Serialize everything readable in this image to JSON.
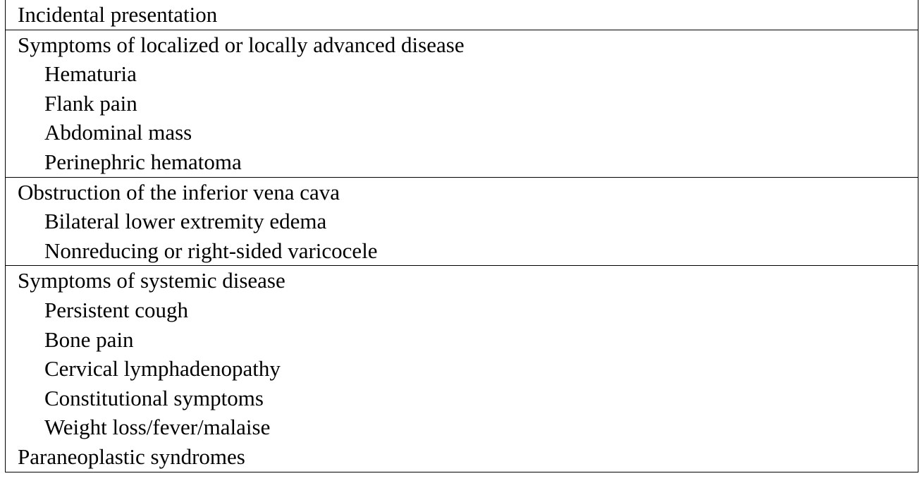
{
  "sections": [
    {
      "heading": "Incidental presentation",
      "items": []
    },
    {
      "heading": "Symptoms of localized or locally advanced disease",
      "items": [
        "Hematuria",
        "Flank pain",
        "Abdominal mass",
        "Perinephric hematoma"
      ]
    },
    {
      "heading": "Obstruction of the inferior vena cava",
      "items": [
        "Bilateral lower extremity edema",
        "Nonreducing or right-sided varicocele"
      ]
    },
    {
      "heading": "Symptoms of systemic disease",
      "items": [
        "Persistent cough",
        "Bone pain",
        "Cervical lymphadenopathy",
        "Constitutional symptoms",
        "Weight loss/fever/malaise"
      ]
    },
    {
      "heading": "Paraneoplastic syndromes",
      "items": []
    }
  ]
}
